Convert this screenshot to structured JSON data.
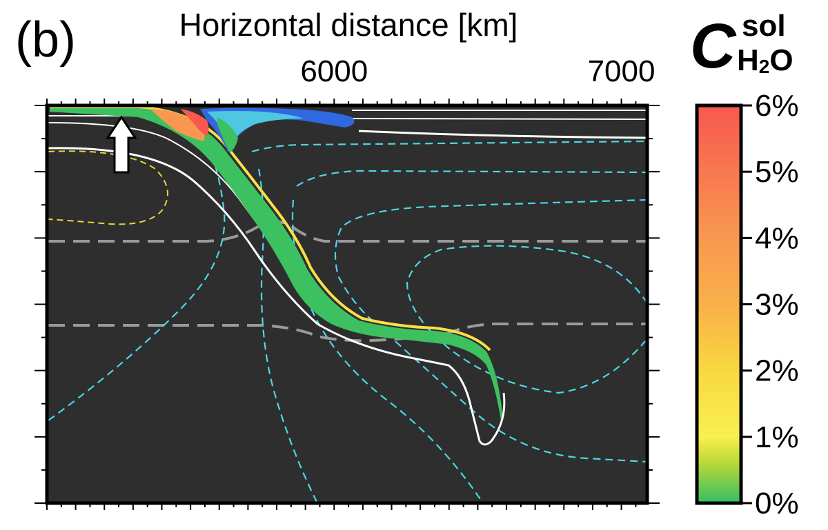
{
  "panel_label": "(b)",
  "colorbar": {
    "symbol": "C",
    "superscript": "sol",
    "subscript_main": "H",
    "subscript_digit": "2",
    "subscript_tail": "O",
    "ticks": [
      "0%",
      "1%",
      "2%",
      "3%",
      "4%",
      "5%",
      "6%"
    ],
    "stops": [
      {
        "value": 0.0,
        "color": "#4ec8e0"
      },
      {
        "value": 0.04,
        "color": "#3cc060"
      },
      {
        "value": 0.6,
        "color": "#b8d838"
      },
      {
        "value": 1.0,
        "color": "#f8f050"
      },
      {
        "value": 2.0,
        "color": "#f8d840"
      },
      {
        "value": 3.0,
        "color": "#f8b048"
      },
      {
        "value": 4.0,
        "color": "#f89850"
      },
      {
        "value": 5.0,
        "color": "#f87850"
      },
      {
        "value": 6.0,
        "color": "#f85850"
      }
    ]
  },
  "colors": {
    "background": "#2e2e2e",
    "frame": "#000000",
    "white_contour": "#ffffff",
    "cyan_streamline": "#4ad8e8",
    "yellow_streamline": "#e8d838",
    "gray_dashed": "#9a9a9a",
    "arrow_fill": "#ffffff"
  },
  "chart_data": {
    "type": "heatmap",
    "xlabel": "Horizontal distance [km]",
    "x_tick_labels": [
      {
        "value": 6000,
        "label": "6000"
      },
      {
        "value": 7000,
        "label": "7000"
      }
    ],
    "xlim": [
      5000,
      7090
    ],
    "colorbar_range": [
      0,
      6
    ],
    "colorbar_unit": "%",
    "grid": false
  }
}
